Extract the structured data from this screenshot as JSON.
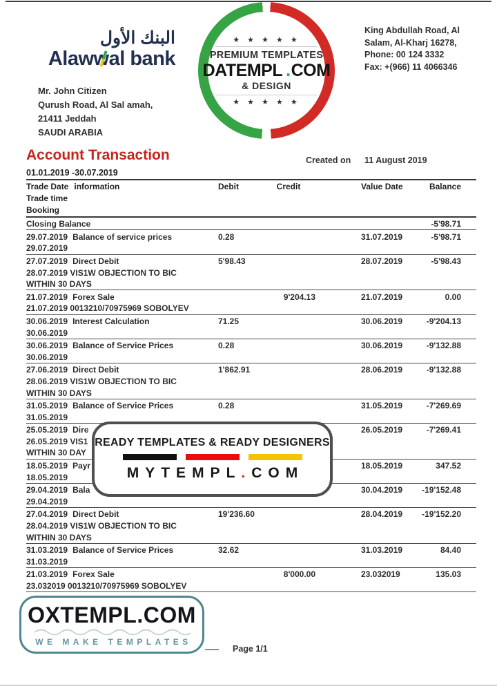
{
  "logo": {
    "arabic": "البنك الأول",
    "latin": "Alawwal bank"
  },
  "customer_address": {
    "lines": [
      "Mr. John Citizen",
      "Qurush Road, Al Sal amah,",
      "21411 Jeddah",
      "SAUDI ARABIA"
    ]
  },
  "bank_address": {
    "lines": [
      "King Abdullah Road, Al",
      "Salam, Al-Kharj 16278,",
      "Phone: 00 124 3332",
      "Fax: +(966) 11 4066346"
    ]
  },
  "stamp": {
    "stars": "★ ★ ★ ★ ★",
    "premium": "PREMIUM TEMPLATES",
    "domain": "DATEMPL",
    "dot": ".",
    "tld": "COM",
    "design": "& DESIGN",
    "colors": {
      "ring_green": "#36a345",
      "ring_red": "#d22b25",
      "dot_green": "#2fa84f"
    }
  },
  "document": {
    "title": "Account Transaction",
    "title_color": "#c4251d",
    "created_on_label": "Created on",
    "created_on_value": "11 August 2019",
    "period": "01.01.2019 -30.07.2019",
    "page_label": "Page 1/1"
  },
  "table": {
    "headers": {
      "trade_date": "Trade Date",
      "information": "information",
      "debit": "Debit",
      "credit": "Credit",
      "value_date": "Value Date",
      "balance": "Balance",
      "trade_time": "Trade time",
      "booking": "Booking"
    },
    "rows": [
      {
        "date": "",
        "info": "Closing Balance",
        "debit": "",
        "credit": "",
        "value_date": "",
        "balance": "-5'98.71",
        "lines": []
      },
      {
        "date": "29.07.2019",
        "info": "Balance of service prices",
        "debit": "0.28",
        "credit": "",
        "value_date": "31.07.2019",
        "balance": "-5'98.71",
        "lines": [
          "29.07.2019"
        ]
      },
      {
        "date": "27.07.2019",
        "info": "Direct Debit",
        "debit": "5'98.43",
        "credit": "",
        "value_date": "28.07.2019",
        "balance": "-5'98.43",
        "lines": [
          "28.07.2019 VIS1W OBJECTION TO BIC",
          "WITHIN 30 DAYS"
        ]
      },
      {
        "date": "21.07.2019",
        "info": "Forex Sale",
        "debit": "",
        "credit": "9'204.13",
        "value_date": "21.07.2019",
        "balance": "0.00",
        "lines": [
          "21.07.2019 0013210/70975969 SOBOLYEV"
        ]
      },
      {
        "date": "30.06.2019",
        "info": "Interest Calculation",
        "debit": "71.25",
        "credit": "",
        "value_date": "30.06.2019",
        "balance": "-9'204.13",
        "lines": [
          "30.06.2019"
        ]
      },
      {
        "date": "30.06.2019",
        "info": "Balance of Service Prices",
        "debit": "0.28",
        "credit": "",
        "value_date": "30.06.2019",
        "balance": "-9'132.88",
        "lines": [
          "30.06.2019"
        ]
      },
      {
        "date": "27.06.2019",
        "info": "Direct Debit",
        "debit": "1'862.91",
        "credit": "",
        "value_date": "28.06.2019",
        "balance": "-9'132.88",
        "lines": [
          "28.06.2019 VIS1W OBJECTION TO BIC",
          "WITHIN 30 DAYS"
        ]
      },
      {
        "date": "31.05.2019",
        "info": "Balance of Service Prices",
        "debit": "0.28",
        "credit": "",
        "value_date": "31.05.2019",
        "balance": "-7'269.69",
        "lines": [
          "31.05.2019"
        ]
      },
      {
        "date": "25.05.2019",
        "info": "Dire",
        "debit": "",
        "credit": "",
        "value_date": "26.05.2019",
        "balance": "-7'269.41",
        "lines": [
          "26.05.2019 VIS1",
          "WITHIN 30 DAY"
        ]
      },
      {
        "date": "18.05.2019",
        "info": "Payr",
        "debit": "",
        "credit": "",
        "value_date": "18.05.2019",
        "balance": "347.52",
        "lines": [
          "18.05.2019"
        ]
      },
      {
        "date": "29.04.2019",
        "info": "Bala",
        "debit": "",
        "credit": "",
        "value_date": "30.04.2019",
        "balance": "-19'152.48",
        "lines": [
          "29.04.2019"
        ]
      },
      {
        "date": "27.04.2019",
        "info": "Direct Debit",
        "debit": "19'236.60",
        "credit": "",
        "value_date": "28.04.2019",
        "balance": "-19'152.20",
        "lines": [
          "28.04.2019 VIS1W OBJECTION TO BIC",
          "WITHIN 30 DAYS"
        ]
      },
      {
        "date": "31.03.2019",
        "info": "Balance of Service Prices",
        "debit": "32.62",
        "credit": "",
        "value_date": "31.03.2019",
        "balance": "84.40",
        "lines": [
          "31.03.2019"
        ]
      },
      {
        "date": "21.03.2019",
        "info": "Forex Sale",
        "debit": "",
        "credit": "8'000.00",
        "value_date": "23.032019",
        "balance": "135.03",
        "lines": [
          "23.032019 0013210/70975969 SOBOLYEV"
        ]
      }
    ]
  },
  "watermark_center": {
    "tagline": "READY TEMPLATES & READY DESIGNERS",
    "domain": "MYTEMPL",
    "dot": ".",
    "tld": "COM",
    "bar_colors": [
      "#101010",
      "#e90d0d",
      "#f3c400"
    ],
    "dot_color": "#e90d0d"
  },
  "watermark_bottom": {
    "domain": "OXTEMPL.COM",
    "tagline": "WE MAKE TEMPLATES",
    "border_color": "#4f868f",
    "tagline_color": "#64959e"
  },
  "brand_colors": {
    "navy": "#22304f",
    "logo_green": "#2fa84f",
    "logo_yellow": "#f0c417"
  }
}
